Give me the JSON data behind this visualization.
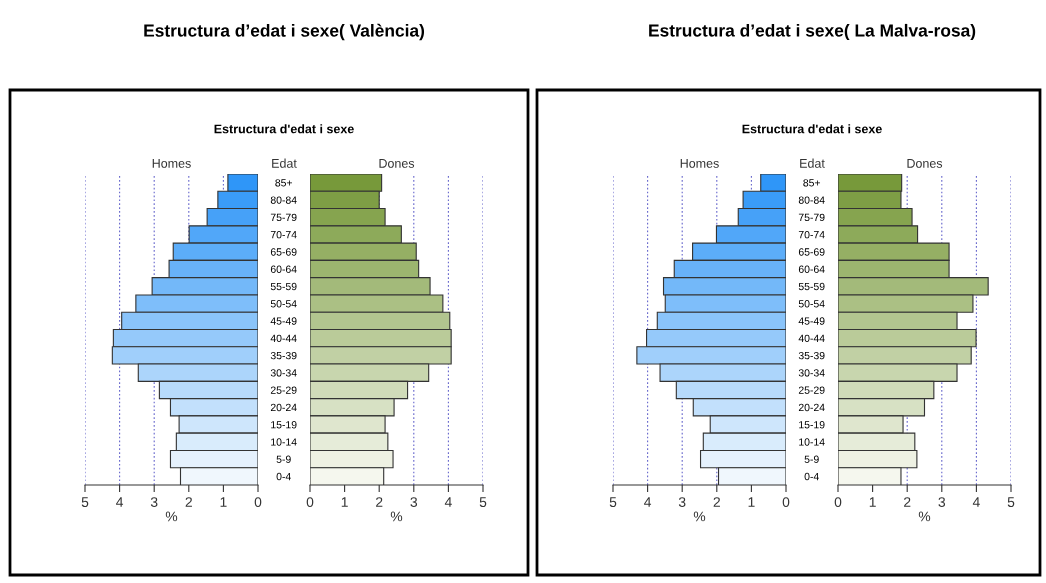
{
  "chart_data": [
    {
      "type": "bar",
      "orientation": "horizontal",
      "title": "Estructura d’edat i sexe( València)",
      "subtitle": "Estructura d'edat i sexe",
      "ylabel": "Edat",
      "xlabel": "%",
      "xlim": [
        5,
        0
      ],
      "xticks": [
        0,
        1,
        2,
        3,
        4,
        5
      ],
      "grid": "x",
      "categories": [
        "85+",
        "80-84",
        "75-79",
        "70-74",
        "65-69",
        "60-64",
        "55-59",
        "50-54",
        "45-49",
        "40-44",
        "35-39",
        "30-34",
        "25-29",
        "20-24",
        "15-19",
        "10-14",
        "5-9",
        "0-4"
      ],
      "series": [
        {
          "name": "Homes",
          "colors": [
            "#2f96f8",
            "#3a9cf8",
            "#46a1f8",
            "#51a7f9",
            "#5cadf9",
            "#68b2f9",
            "#73b8f9",
            "#7ebefa",
            "#8ac4fa",
            "#95c9fa",
            "#a0cffb",
            "#acd5fb",
            "#b7dafb",
            "#c2e0fc",
            "#cee6fc",
            "#d9ecfc",
            "#e5f1fd",
            "#f0f7fd"
          ],
          "values": [
            0.87,
            1.16,
            1.47,
            1.99,
            2.45,
            2.57,
            3.06,
            3.53,
            3.94,
            4.18,
            4.21,
            3.46,
            2.85,
            2.53,
            2.28,
            2.36,
            2.53,
            2.24
          ]
        }
      ]
    },
    {
      "type": "bar",
      "orientation": "horizontal",
      "xlabel": "%",
      "xlim": [
        0,
        5
      ],
      "xticks": [
        0,
        1,
        2,
        3,
        4,
        5
      ],
      "grid": "x",
      "tick_labels": "x",
      "series": [
        {
          "name": "Dones",
          "colors": [
            "#77993a",
            "#7e9e45",
            "#86a44f",
            "#8daa5a",
            "#95af64",
            "#9cb56f",
            "#a3ba7a",
            "#abc084",
            "#b2c58f",
            "#bacb99",
            "#c1d0a4",
            "#c8d6ae",
            "#d0dbb9",
            "#d7e1c4",
            "#dfe6ce",
            "#e6ecd9",
            "#eef1e3",
            "#f5f7ee"
          ],
          "values": [
            2.07,
            2.0,
            2.17,
            2.64,
            3.07,
            3.14,
            3.47,
            3.84,
            4.04,
            4.08,
            4.08,
            3.43,
            2.82,
            2.43,
            2.17,
            2.25,
            2.4,
            2.13
          ]
        }
      ]
    },
    {
      "type": "bar",
      "orientation": "horizontal",
      "title": "Estructura d’edat i sexe( La Malva-rosa)",
      "subtitle": "Estructura d'edat i sexe",
      "ylabel": "Edat",
      "xlabel": "%",
      "xlim": [
        5,
        0
      ],
      "xticks": [
        0,
        1,
        2,
        3,
        4,
        5
      ],
      "grid": "x",
      "categories": [
        "85+",
        "80-84",
        "75-79",
        "70-74",
        "65-69",
        "60-64",
        "55-59",
        "50-54",
        "45-49",
        "40-44",
        "35-39",
        "30-34",
        "25-29",
        "20-24",
        "15-19",
        "10-14",
        "5-9",
        "0-4"
      ],
      "series": [
        {
          "name": "Homes",
          "colors": [
            "#2f96f8",
            "#3a9cf8",
            "#46a1f8",
            "#51a7f9",
            "#5cadf9",
            "#68b2f9",
            "#73b8f9",
            "#7ebefa",
            "#8ac4fa",
            "#95c9fa",
            "#a0cffb",
            "#acd5fb",
            "#b7dafb",
            "#c2e0fc",
            "#cee6fc",
            "#d9ecfc",
            "#e5f1fd",
            "#f0f7fd"
          ],
          "values": [
            0.73,
            1.24,
            1.38,
            2.01,
            2.7,
            3.23,
            3.54,
            3.49,
            3.72,
            4.03,
            4.31,
            3.64,
            3.17,
            2.68,
            2.19,
            2.39,
            2.47,
            1.95
          ]
        }
      ]
    },
    {
      "type": "bar",
      "orientation": "horizontal",
      "xlabel": "%",
      "xlim": [
        0,
        5
      ],
      "xticks": [
        0,
        1,
        2,
        3,
        4,
        5
      ],
      "grid": "x",
      "tick_labels": "x",
      "series": [
        {
          "name": "Dones",
          "colors": [
            "#77993a",
            "#7e9e45",
            "#86a44f",
            "#8daa5a",
            "#95af64",
            "#9cb56f",
            "#a3ba7a",
            "#abc084",
            "#b2c58f",
            "#bacb99",
            "#c1d0a4",
            "#c8d6ae",
            "#d0dbb9",
            "#d7e1c4",
            "#dfe6ce",
            "#e6ecd9",
            "#eef1e3",
            "#f5f7ee"
          ],
          "values": [
            1.84,
            1.82,
            2.14,
            2.3,
            3.21,
            3.21,
            4.34,
            3.9,
            3.44,
            3.99,
            3.85,
            3.44,
            2.77,
            2.5,
            1.88,
            2.22,
            2.28,
            1.82
          ]
        }
      ]
    }
  ]
}
